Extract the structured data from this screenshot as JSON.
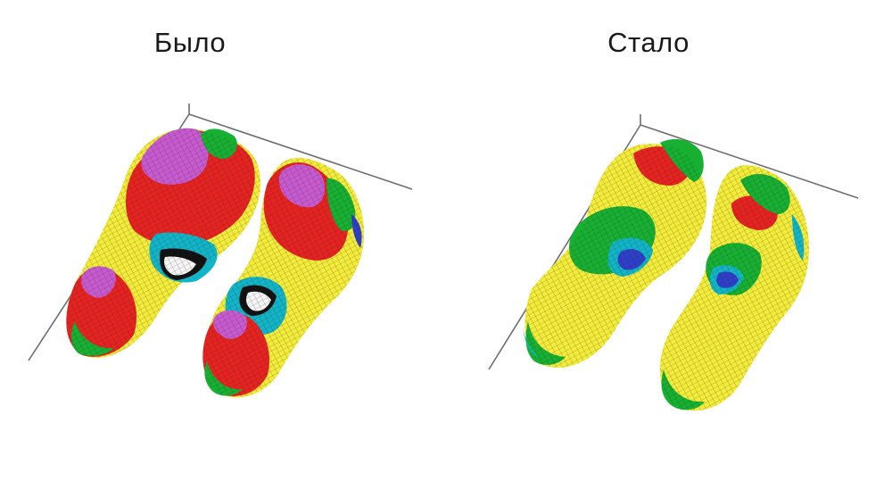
{
  "panels": [
    {
      "id": "before",
      "caption": "Было",
      "pressure_level": "high",
      "palette": [
        "#7a2a8a",
        "#c85ad0",
        "#e62320",
        "#f4ec3a",
        "#17b032",
        "#12b5c8",
        "#2f3fc8",
        "#111111",
        "#f5f5f5"
      ]
    },
    {
      "id": "after",
      "caption": "Стало",
      "pressure_level": "normal",
      "palette": [
        "#e62320",
        "#f4ec3a",
        "#17b032",
        "#12b5c8",
        "#2f3fc8"
      ]
    }
  ],
  "colors": {
    "axis": "#6e6e6e",
    "grid_line": "#222222",
    "background": "#ffffff"
  }
}
